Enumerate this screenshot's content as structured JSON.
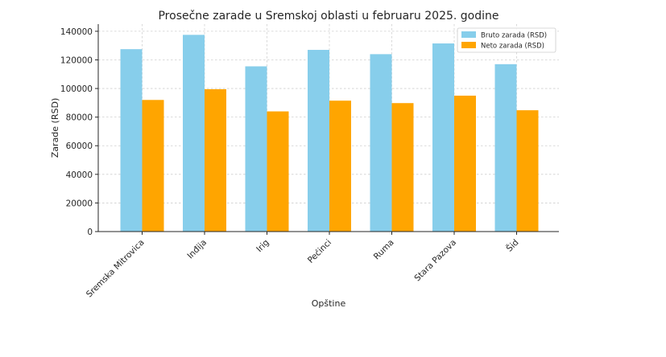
{
  "chart_data": {
    "type": "bar",
    "title": "Prosečne zarade u Sremskoj oblasti u februaru 2025. godine",
    "xlabel": "Opštine",
    "ylabel": "Zarade (RSD)",
    "categories": [
      "Sremska Mitrovica",
      "Inđija",
      "Irig",
      "Pećinci",
      "Ruma",
      "Stara Pazova",
      "Šid"
    ],
    "series": [
      {
        "name": "Bruto zarada (RSD)",
        "color": "#87CEEB",
        "values": [
          127500,
          137500,
          115500,
          127000,
          124000,
          131500,
          117000
        ]
      },
      {
        "name": "Neto zarada (RSD)",
        "color": "#FFA500",
        "values": [
          92000,
          99500,
          84000,
          91500,
          89800,
          95000,
          84800
        ]
      }
    ],
    "ylim": [
      0,
      145000
    ],
    "yticks": [
      0,
      20000,
      40000,
      60000,
      80000,
      100000,
      120000,
      140000
    ],
    "grid": true,
    "legend_position": "top-right"
  }
}
